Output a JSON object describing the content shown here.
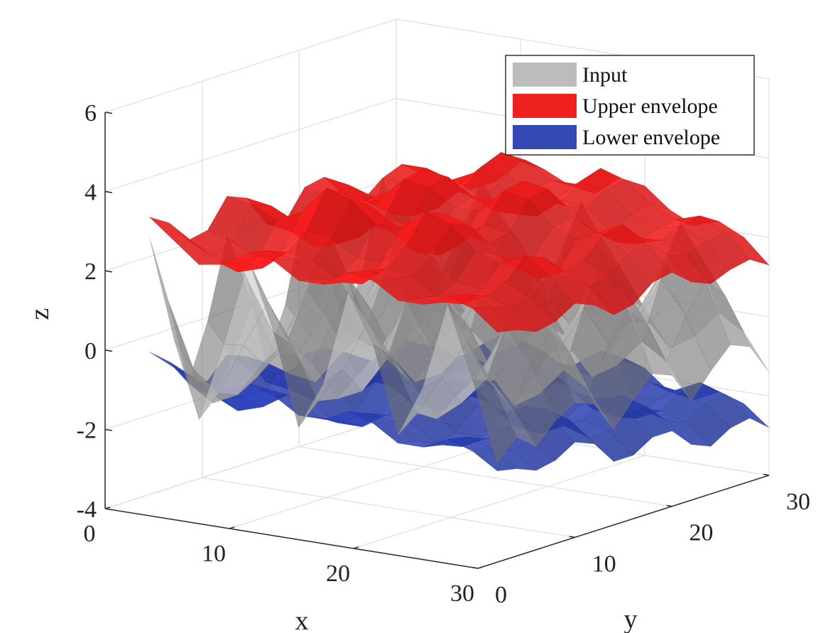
{
  "chart_data": {
    "type": "surface3d",
    "xlabel": "x",
    "ylabel": "y",
    "zlabel": "z",
    "xlim": [
      0,
      30
    ],
    "ylim": [
      0,
      30
    ],
    "zlim": [
      -4,
      6
    ],
    "xticks": [
      0,
      10,
      20,
      30
    ],
    "yticks": [
      0,
      10,
      20,
      30
    ],
    "zticks": [
      -4,
      -2,
      0,
      2,
      4,
      6
    ],
    "x": [
      2,
      4,
      6,
      8,
      10,
      12,
      14,
      16,
      18,
      20,
      22,
      24,
      26,
      28,
      30
    ],
    "y": [
      2,
      4,
      6,
      8,
      10,
      12,
      14,
      16,
      18,
      20,
      22,
      24,
      26,
      28,
      30
    ],
    "grid": true,
    "legend_position": "top-right",
    "series": [
      {
        "name": "Input",
        "color": "#a0a0a0",
        "opacity": 0.6,
        "z": [
          [
            2.8,
            0.3,
            -1.6,
            0.4,
            2.6,
            0.9,
            -1.4,
            -0.2,
            2.2,
            1.0,
            -1.2,
            0.1,
            2.3,
            0.5,
            -1.5
          ],
          [
            1.0,
            -0.6,
            -1.1,
            0.2,
            1.4,
            0.4,
            -0.9,
            0.0,
            1.3,
            0.5,
            -0.8,
            0.2,
            1.2,
            0.3,
            -1.0
          ],
          [
            -1.2,
            -1.6,
            -1.3,
            -0.4,
            0.3,
            -0.2,
            -1.0,
            -0.7,
            0.2,
            -0.3,
            -1.1,
            -0.6,
            0.1,
            -0.5,
            -1.4
          ],
          [
            0.2,
            -0.6,
            -1.0,
            0.0,
            1.4,
            0.6,
            -0.6,
            0.1,
            1.5,
            0.5,
            -0.7,
            0.0,
            1.3,
            0.4,
            -0.9
          ],
          [
            2.2,
            0.6,
            -0.6,
            0.8,
            2.8,
            1.5,
            -0.2,
            0.9,
            2.6,
            1.3,
            -0.4,
            0.7,
            2.5,
            1.1,
            -0.6
          ],
          [
            1.0,
            -0.2,
            -0.8,
            0.3,
            1.5,
            0.7,
            -0.5,
            0.2,
            1.4,
            0.6,
            -0.6,
            0.3,
            1.3,
            0.4,
            -0.8
          ],
          [
            -1.3,
            -1.5,
            -1.6,
            -0.8,
            -0.1,
            -0.4,
            -1.2,
            -0.9,
            -0.2,
            -0.5,
            -1.4,
            -1.0,
            -0.3,
            -0.7,
            -1.6
          ],
          [
            0.0,
            -0.7,
            -1.1,
            -0.1,
            1.2,
            0.5,
            -0.7,
            0.0,
            1.3,
            0.4,
            -0.8,
            -0.1,
            1.1,
            0.3,
            -1.0
          ],
          [
            2.3,
            0.8,
            -0.4,
            1.0,
            2.7,
            1.4,
            -0.1,
            0.9,
            2.5,
            1.2,
            -0.3,
            0.8,
            2.4,
            1.0,
            -0.5
          ],
          [
            1.1,
            0.0,
            -0.6,
            0.4,
            1.6,
            0.8,
            -0.4,
            0.3,
            1.5,
            0.6,
            -0.5,
            0.3,
            1.4,
            0.5,
            -0.7
          ],
          [
            -1.1,
            -1.4,
            -1.5,
            -0.7,
            0.0,
            -0.3,
            -1.1,
            -0.8,
            -0.1,
            -0.4,
            -1.3,
            -0.9,
            -0.2,
            -0.6,
            -1.5
          ],
          [
            0.3,
            -0.5,
            -0.9,
            0.1,
            1.3,
            0.6,
            -0.6,
            0.1,
            1.4,
            0.5,
            -0.7,
            0.0,
            1.2,
            0.4,
            -0.9
          ],
          [
            2.4,
            0.9,
            -0.3,
            1.1,
            2.8,
            1.5,
            0.0,
            1.0,
            2.6,
            1.3,
            -0.2,
            0.9,
            2.5,
            1.1,
            -0.4
          ],
          [
            1.2,
            0.1,
            -0.5,
            0.5,
            1.7,
            0.9,
            -0.3,
            0.4,
            1.6,
            0.7,
            -0.4,
            0.4,
            1.5,
            0.6,
            -0.6
          ],
          [
            -1.0,
            -1.3,
            -1.4,
            -0.6,
            0.1,
            -0.2,
            -1.0,
            -0.7,
            0.0,
            -0.3,
            -1.2,
            -0.8,
            -0.1,
            -0.5,
            -1.4
          ]
        ]
      },
      {
        "name": "Upper envelope",
        "color": "#ee1c1c",
        "opacity": 0.88,
        "z": [
          [
            3.3,
            2.8,
            2.3,
            2.4,
            2.8,
            2.7,
            2.3,
            2.3,
            2.7,
            2.6,
            2.2,
            2.2,
            2.5,
            2.3,
            1.8
          ],
          [
            3.0,
            2.6,
            2.2,
            2.3,
            2.7,
            2.6,
            2.2,
            2.2,
            2.6,
            2.5,
            2.1,
            2.1,
            2.4,
            2.2,
            1.7
          ],
          [
            2.4,
            2.1,
            1.8,
            2.0,
            2.5,
            2.4,
            2.0,
            2.0,
            2.5,
            2.4,
            2.0,
            1.9,
            2.2,
            2.0,
            1.5
          ],
          [
            2.5,
            2.3,
            2.0,
            2.3,
            2.9,
            2.8,
            2.4,
            2.4,
            2.9,
            2.7,
            2.2,
            2.1,
            2.4,
            2.1,
            1.6
          ],
          [
            3.2,
            3.1,
            2.8,
            3.1,
            3.8,
            3.6,
            3.1,
            3.1,
            3.6,
            3.4,
            2.8,
            2.6,
            2.9,
            2.5,
            1.9
          ],
          [
            3.0,
            2.9,
            2.6,
            2.8,
            3.5,
            3.3,
            2.9,
            2.9,
            3.4,
            3.2,
            2.6,
            2.4,
            2.7,
            2.3,
            1.7
          ],
          [
            2.2,
            2.1,
            1.8,
            2.0,
            2.6,
            2.5,
            2.1,
            2.1,
            2.7,
            2.6,
            2.1,
            1.9,
            2.2,
            1.9,
            1.3
          ],
          [
            2.1,
            2.0,
            1.8,
            2.0,
            2.6,
            2.5,
            2.2,
            2.2,
            2.8,
            2.7,
            2.2,
            2.0,
            2.3,
            2.0,
            1.4
          ],
          [
            2.8,
            2.7,
            2.5,
            2.8,
            3.4,
            3.3,
            2.9,
            2.9,
            3.5,
            3.4,
            2.8,
            2.6,
            2.8,
            2.4,
            1.8
          ],
          [
            2.9,
            2.8,
            2.6,
            2.9,
            3.5,
            3.4,
            3.0,
            3.0,
            3.6,
            3.5,
            2.9,
            2.6,
            2.9,
            2.5,
            1.9
          ],
          [
            2.3,
            2.2,
            2.0,
            2.3,
            2.9,
            2.8,
            2.5,
            2.5,
            3.0,
            2.9,
            2.4,
            2.2,
            2.4,
            2.1,
            1.5
          ],
          [
            2.0,
            2.0,
            1.8,
            2.1,
            2.7,
            2.6,
            2.3,
            2.3,
            2.8,
            2.7,
            2.2,
            2.0,
            2.2,
            1.9,
            1.3
          ],
          [
            2.4,
            2.4,
            2.2,
            2.5,
            3.1,
            3.0,
            2.7,
            2.6,
            3.1,
            3.0,
            2.5,
            2.2,
            2.4,
            2.1,
            1.5
          ],
          [
            2.6,
            2.6,
            2.4,
            2.7,
            3.3,
            3.2,
            2.8,
            2.8,
            3.3,
            3.1,
            2.6,
            2.3,
            2.5,
            2.2,
            1.6
          ],
          [
            2.2,
            2.2,
            2.0,
            2.3,
            2.9,
            2.8,
            2.5,
            2.4,
            2.9,
            2.8,
            2.3,
            2.0,
            2.2,
            1.9,
            1.3
          ]
        ]
      },
      {
        "name": "Lower envelope",
        "color": "#2a3fb0",
        "opacity": 0.85,
        "z": [
          [
            -0.1,
            -0.4,
            -0.9,
            -0.8,
            -0.5,
            -0.7,
            -1.1,
            -1.1,
            -0.8,
            -1.0,
            -1.4,
            -1.4,
            -1.1,
            -1.3,
            -1.7
          ],
          [
            -0.5,
            -0.8,
            -1.2,
            -1.1,
            -0.8,
            -0.9,
            -1.3,
            -1.3,
            -1.0,
            -1.1,
            -1.5,
            -1.5,
            -1.2,
            -1.4,
            -1.8
          ],
          [
            -1.2,
            -1.4,
            -1.7,
            -1.5,
            -1.1,
            -1.2,
            -1.6,
            -1.6,
            -1.2,
            -1.3,
            -1.7,
            -1.7,
            -1.4,
            -1.6,
            -2.0
          ],
          [
            -1.3,
            -1.5,
            -1.7,
            -1.4,
            -0.9,
            -1.0,
            -1.4,
            -1.4,
            -1.0,
            -1.1,
            -1.6,
            -1.6,
            -1.3,
            -1.5,
            -1.9
          ],
          [
            -0.8,
            -0.9,
            -1.1,
            -0.8,
            -0.3,
            -0.4,
            -0.9,
            -0.9,
            -0.5,
            -0.6,
            -1.1,
            -1.2,
            -0.9,
            -1.1,
            -1.6
          ],
          [
            -1.0,
            -1.1,
            -1.3,
            -1.0,
            -0.5,
            -0.6,
            -1.1,
            -1.1,
            -0.7,
            -0.8,
            -1.3,
            -1.4,
            -1.1,
            -1.3,
            -1.8
          ],
          [
            -1.8,
            -1.9,
            -2.1,
            -1.8,
            -1.3,
            -1.4,
            -1.8,
            -1.8,
            -1.3,
            -1.4,
            -1.9,
            -2.0,
            -1.7,
            -1.9,
            -2.4
          ],
          [
            -1.9,
            -2.0,
            -2.2,
            -1.9,
            -1.4,
            -1.5,
            -1.8,
            -1.8,
            -1.3,
            -1.4,
            -1.9,
            -2.0,
            -1.7,
            -1.9,
            -2.4
          ],
          [
            -1.4,
            -1.5,
            -1.7,
            -1.4,
            -0.9,
            -1.0,
            -1.4,
            -1.4,
            -0.9,
            -1.0,
            -1.5,
            -1.6,
            -1.4,
            -1.6,
            -2.1
          ],
          [
            -1.4,
            -1.5,
            -1.7,
            -1.4,
            -0.9,
            -1.0,
            -1.4,
            -1.4,
            -0.9,
            -1.0,
            -1.5,
            -1.6,
            -1.4,
            -1.6,
            -2.1
          ],
          [
            -2.0,
            -2.1,
            -2.3,
            -2.0,
            -1.5,
            -1.6,
            -2.0,
            -2.0,
            -1.5,
            -1.6,
            -2.1,
            -2.2,
            -1.9,
            -2.1,
            -2.6
          ],
          [
            -2.3,
            -2.4,
            -2.6,
            -2.3,
            -1.8,
            -1.9,
            -2.2,
            -2.2,
            -1.7,
            -1.8,
            -2.3,
            -2.4,
            -2.1,
            -2.3,
            -2.8
          ],
          [
            -1.9,
            -2.0,
            -2.2,
            -1.9,
            -1.4,
            -1.5,
            -1.9,
            -1.9,
            -1.4,
            -1.5,
            -2.0,
            -2.1,
            -1.8,
            -2.0,
            -2.5
          ],
          [
            -1.8,
            -1.9,
            -2.1,
            -1.8,
            -1.3,
            -1.4,
            -1.8,
            -1.8,
            -1.3,
            -1.4,
            -1.9,
            -2.0,
            -1.7,
            -1.9,
            -2.4
          ],
          [
            -2.2,
            -2.3,
            -2.5,
            -2.2,
            -1.7,
            -1.8,
            -2.2,
            -2.2,
            -1.7,
            -1.8,
            -2.3,
            -2.4,
            -2.1,
            -2.3,
            -2.8
          ]
        ]
      }
    ]
  }
}
